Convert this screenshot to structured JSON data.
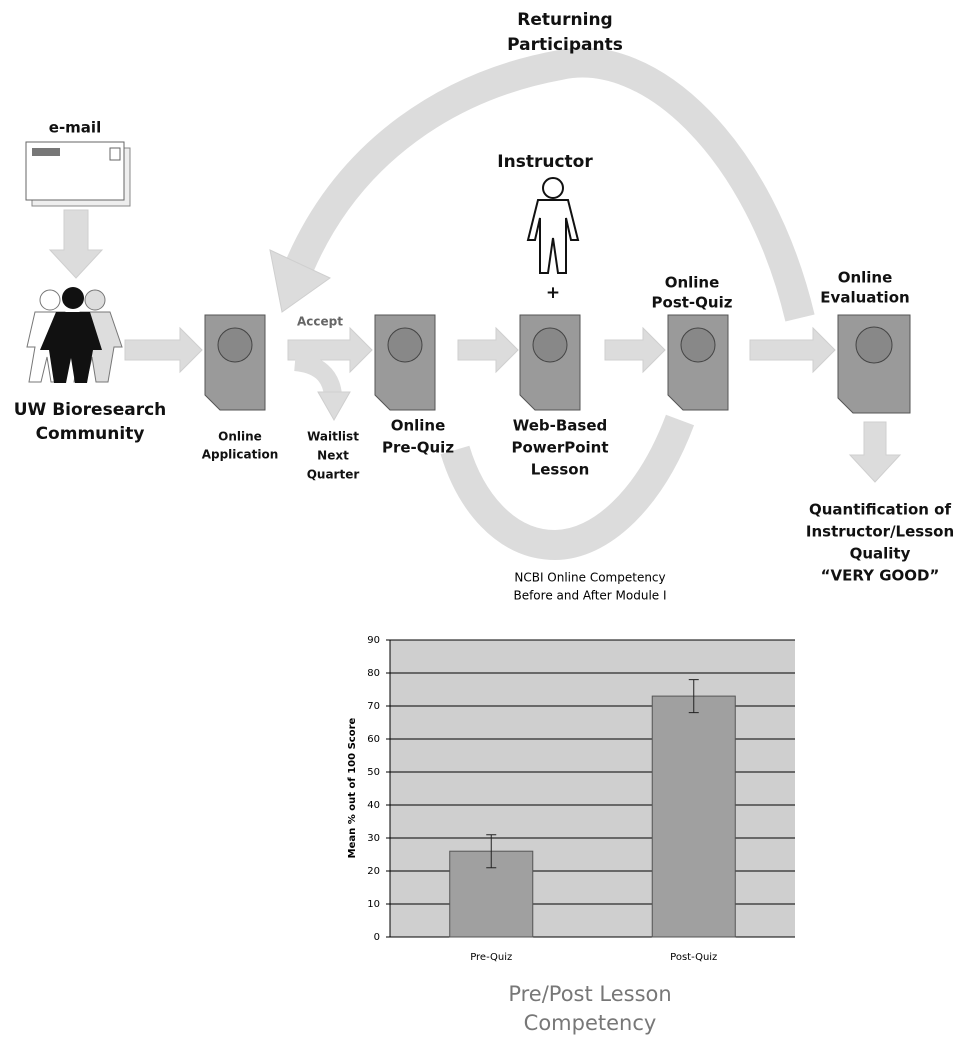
{
  "diagram": {
    "returning_participants": [
      "Returning",
      "Participants"
    ],
    "email": "e-mail",
    "instructor": "Instructor",
    "plus": "+",
    "accept": "Accept",
    "community": [
      "UW Bioresearch",
      "Community"
    ],
    "application": [
      "Online",
      "Application"
    ],
    "waitlist": [
      "Waitlist",
      "Next",
      "Quarter"
    ],
    "pre_quiz": [
      "Online",
      "Pre-Quiz"
    ],
    "lesson": [
      "Web-Based",
      "PowerPoint",
      "Lesson"
    ],
    "post_quiz": [
      "Online",
      "Post-Quiz"
    ],
    "evaluation": [
      "Online",
      "Evaluation"
    ],
    "quantification": [
      "Quantification of",
      "Instructor/Lesson",
      "Quality",
      "“VERY GOOD”"
    ]
  },
  "chart_data": {
    "type": "bar",
    "title": [
      "NCBI Online Competency",
      "Before and After Module I"
    ],
    "ylabel": "Mean % out of 100 Score",
    "xlabel": [
      "Pre/Post Lesson",
      "Competency"
    ],
    "categories": [
      "Pre-Quiz",
      "Post-Quiz"
    ],
    "values": [
      26,
      73
    ],
    "errors": [
      5,
      5
    ],
    "color": "#a0a0a0",
    "ylim": [
      0,
      90
    ],
    "yticks": [
      0,
      10,
      20,
      30,
      40,
      50,
      60,
      70,
      80,
      90
    ],
    "grid": true
  }
}
